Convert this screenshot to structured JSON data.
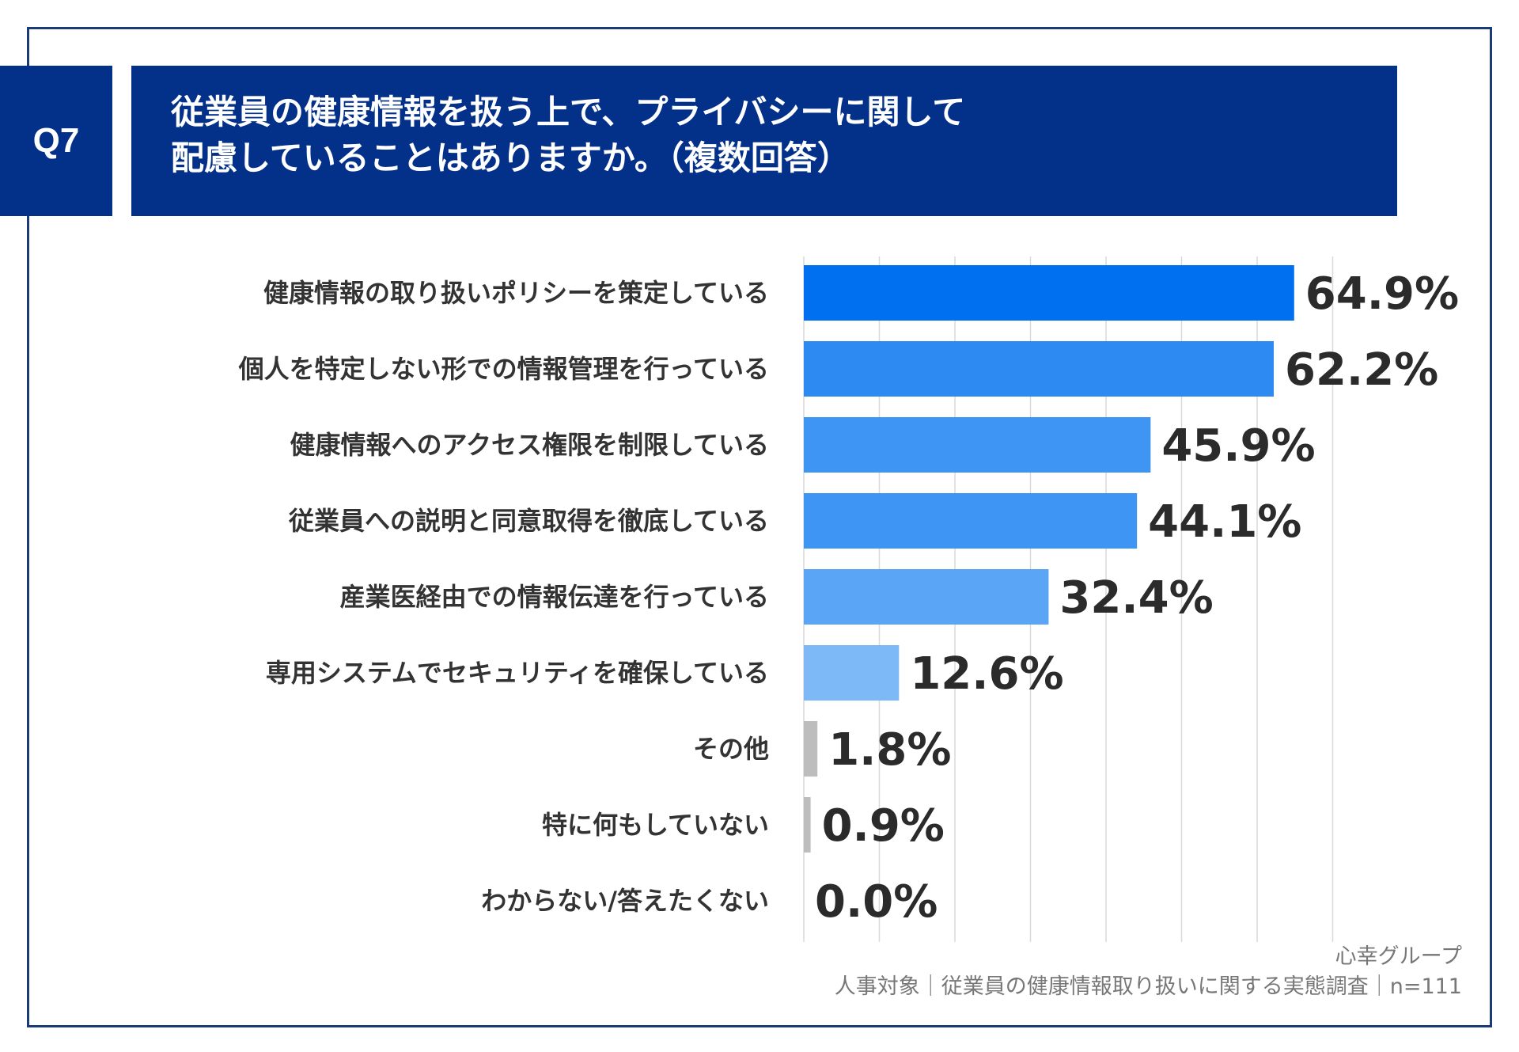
{
  "question_id": "Q7",
  "title_lines": [
    "従業員の健康情報を扱う上で、プライバシーに関して",
    "配慮していることはありますか。（複数回答）"
  ],
  "chart_data": {
    "type": "bar",
    "orientation": "horizontal",
    "categories": [
      "健康情報の取り扱いポリシーを策定している",
      "個人を特定しない形での情報管理を行っている",
      "健康情報へのアクセス権限を制限している",
      "従業員への説明と同意取得を徹底している",
      "産業医経由での情報伝達を行っている",
      "専用システムでセキュリティを確保している",
      "その他",
      "特に何もしていない",
      "わからない/答えたくない"
    ],
    "values": [
      64.9,
      62.2,
      45.9,
      44.1,
      32.4,
      12.6,
      1.8,
      0.9,
      0.0
    ],
    "value_labels": [
      "64.9%",
      "62.2%",
      "45.9%",
      "44.1%",
      "32.4%",
      "12.6%",
      "1.8%",
      "0.9%",
      "0.0%"
    ],
    "bar_colors": [
      "#0070f0",
      "#2c8af2",
      "#3e95f3",
      "#3e95f3",
      "#5aa5f5",
      "#7db8f7",
      "#bdbdbd",
      "#bdbdbd",
      "#bdbdbd"
    ],
    "xlim": [
      0,
      70
    ],
    "grid": true
  },
  "source": {
    "company": "心幸グループ",
    "survey": "人事対象｜従業員の健康情報取り扱いに関する実態調査｜n=111"
  }
}
